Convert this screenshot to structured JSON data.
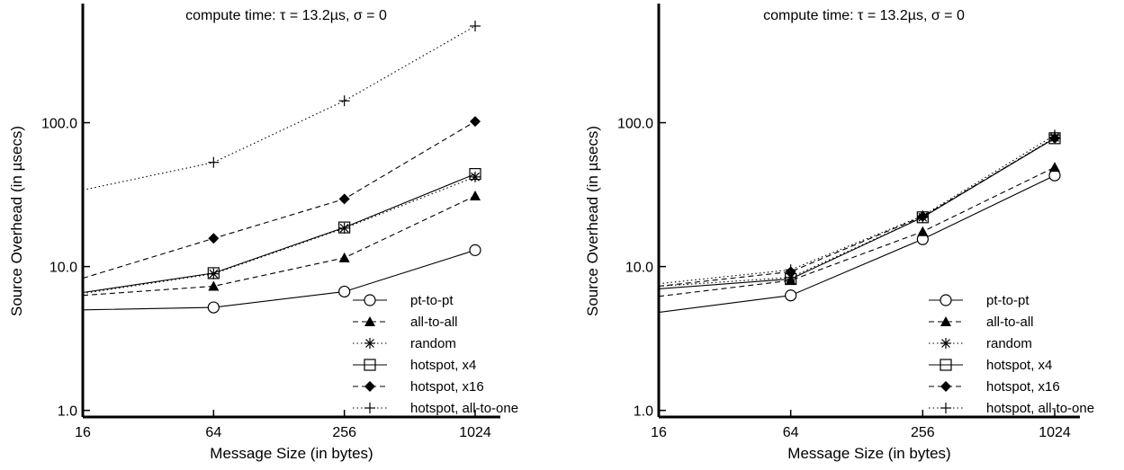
{
  "chart_data": [
    {
      "type": "line",
      "title": "compute time: τ = 13.2µs, σ = 0",
      "xlabel": "Message Size (in bytes)",
      "ylabel": "Source Overhead (in µsecs)",
      "x": [
        16,
        64,
        256,
        1024
      ],
      "x_ticks": [
        "16",
        "64",
        "256",
        "1024"
      ],
      "y_ticks": [
        {
          "value": 1,
          "label": "1.0"
        },
        {
          "value": 10,
          "label": "10.0"
        },
        {
          "value": 100,
          "label": "100.0"
        }
      ],
      "xscale": "log2",
      "yscale": "log",
      "xlim": [
        16,
        1024
      ],
      "ylim": [
        0.9,
        600
      ],
      "grid": false,
      "legend_position": "bottom-right",
      "series": [
        {
          "name": "pt-to-pt",
          "marker": "circle-open",
          "dash": "solid",
          "values": [
            5.0,
            5.2,
            6.7,
            13.0
          ]
        },
        {
          "name": "all-to-all",
          "marker": "triangle-filled",
          "dash": "dashed",
          "values": [
            6.3,
            7.3,
            11.5,
            31.0
          ]
        },
        {
          "name": "random",
          "marker": "asterisk",
          "dash": "dotted",
          "values": [
            6.5,
            8.9,
            18.5,
            42.0
          ]
        },
        {
          "name": "hotspot, x4",
          "marker": "square-open",
          "dash": "solid",
          "values": [
            6.6,
            9.0,
            18.7,
            44.0
          ]
        },
        {
          "name": "hotspot, x16",
          "marker": "diamond-filled",
          "dash": "dashed",
          "values": [
            8.3,
            15.7,
            29.5,
            102.0
          ]
        },
        {
          "name": "hotspot, all-to-one",
          "marker": "plus",
          "dash": "dotted",
          "values": [
            34.0,
            53.0,
            142.0,
            470.0
          ]
        }
      ]
    },
    {
      "type": "line",
      "title": "compute time: τ = 13.2µs, σ = 0",
      "xlabel": "Message Size (in bytes)",
      "ylabel": "Source Overhead (in µsecs)",
      "x": [
        16,
        64,
        256,
        1024
      ],
      "x_ticks": [
        "16",
        "64",
        "256",
        "1024"
      ],
      "y_ticks": [
        {
          "value": 1,
          "label": "1.0"
        },
        {
          "value": 10,
          "label": "10.0"
        },
        {
          "value": 100,
          "label": "100.0"
        }
      ],
      "xscale": "log2",
      "yscale": "log",
      "xlim": [
        16,
        1024
      ],
      "ylim": [
        0.9,
        600
      ],
      "grid": false,
      "legend_position": "bottom-right",
      "series": [
        {
          "name": "pt-to-pt",
          "marker": "circle-open",
          "dash": "solid",
          "values": [
            4.8,
            6.3,
            15.5,
            43.0
          ]
        },
        {
          "name": "all-to-all",
          "marker": "triangle-filled",
          "dash": "dashed",
          "values": [
            6.2,
            8.0,
            17.5,
            49.0
          ]
        },
        {
          "name": "random",
          "marker": "asterisk",
          "dash": "dotted",
          "values": [
            7.3,
            8.4,
            22.0,
            79.0
          ]
        },
        {
          "name": "hotspot, x4",
          "marker": "square-open",
          "dash": "solid",
          "values": [
            7.0,
            8.2,
            22.0,
            78.0
          ]
        },
        {
          "name": "hotspot, x16",
          "marker": "diamond-filled",
          "dash": "dashed",
          "values": [
            7.3,
            9.2,
            22.3,
            78.0
          ]
        },
        {
          "name": "hotspot, all-to-one",
          "marker": "plus",
          "dash": "dotted",
          "values": [
            7.6,
            9.5,
            22.5,
            82.0
          ]
        }
      ]
    }
  ]
}
